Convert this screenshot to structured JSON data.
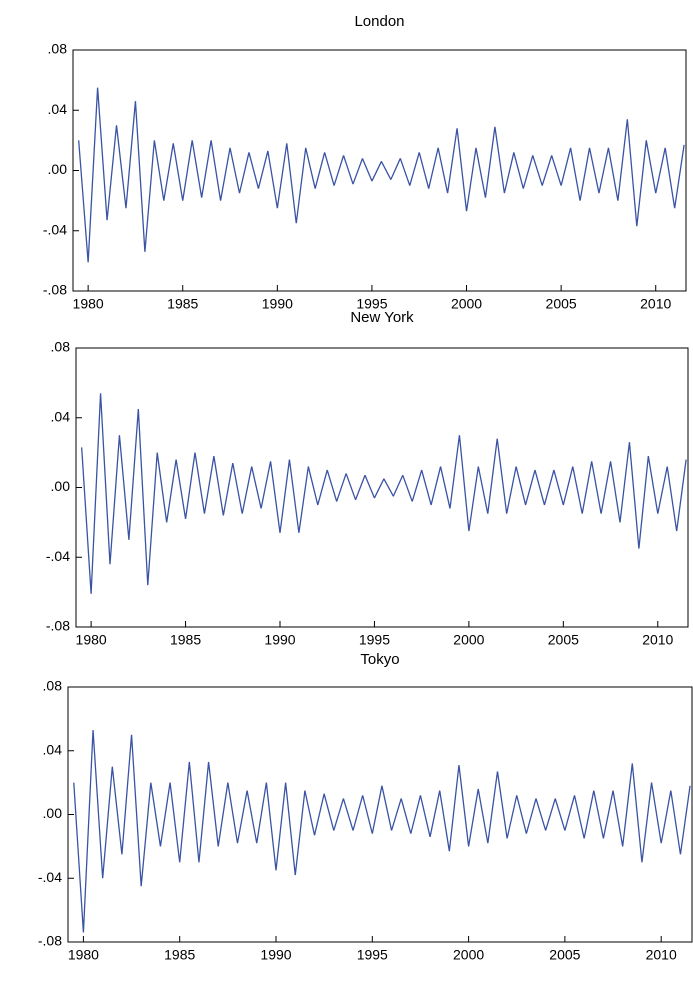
{
  "chart_data": [
    {
      "type": "line",
      "title": "London",
      "color": "#3a53a4",
      "x": [
        1979.5,
        1980,
        1980.5,
        1981,
        1981.5,
        1982,
        1982.5,
        1983,
        1983.5,
        1984,
        1984.5,
        1985,
        1985.5,
        1986,
        1986.5,
        1987,
        1987.5,
        1988,
        1988.5,
        1989,
        1989.5,
        1990,
        1990.5,
        1991,
        1991.5,
        1992,
        1992.5,
        1993,
        1993.5,
        1994,
        1994.5,
        1995,
        1995.5,
        1996,
        1996.5,
        1997,
        1997.5,
        1998,
        1998.5,
        1999,
        1999.5,
        2000,
        2000.5,
        2001,
        2001.5,
        2002,
        2002.5,
        2003,
        2003.5,
        2004,
        2004.5,
        2005,
        2005.5,
        2006,
        2006.5,
        2007,
        2007.5,
        2008,
        2008.5,
        2009,
        2009.5,
        2010,
        2010.5,
        2011,
        2011.5
      ],
      "values": [
        0.02,
        -0.061,
        0.055,
        -0.033,
        0.03,
        -0.025,
        0.046,
        -0.054,
        0.02,
        -0.02,
        0.018,
        -0.02,
        0.02,
        -0.018,
        0.02,
        -0.02,
        0.015,
        -0.015,
        0.012,
        -0.012,
        0.013,
        -0.025,
        0.018,
        -0.035,
        0.015,
        -0.012,
        0.012,
        -0.01,
        0.01,
        -0.009,
        0.008,
        -0.007,
        0.006,
        -0.006,
        0.008,
        -0.01,
        0.012,
        -0.012,
        0.015,
        -0.015,
        0.028,
        -0.027,
        0.015,
        -0.018,
        0.029,
        -0.015,
        0.012,
        -0.012,
        0.01,
        -0.01,
        0.01,
        -0.01,
        0.015,
        -0.02,
        0.015,
        -0.015,
        0.015,
        -0.02,
        0.034,
        -0.037,
        0.02,
        -0.015,
        0.015,
        -0.025,
        0.017
      ],
      "xlim": [
        1979.2,
        2011.6
      ],
      "ylim": [
        -0.08,
        0.08
      ],
      "xticks": [
        1980,
        1985,
        1990,
        1995,
        2000,
        2005,
        2010
      ],
      "yticks": [
        {
          "value": -0.08,
          "label": "-.08"
        },
        {
          "value": -0.04,
          "label": "-.04"
        },
        {
          "value": 0,
          "label": ".00"
        },
        {
          "value": 0.04,
          "label": ".04"
        },
        {
          "value": 0.08,
          "label": ".08"
        }
      ]
    },
    {
      "type": "line",
      "title": "New York",
      "color": "#3a53a4",
      "x": [
        1979.5,
        1980,
        1980.5,
        1981,
        1981.5,
        1982,
        1982.5,
        1983,
        1983.5,
        1984,
        1984.5,
        1985,
        1985.5,
        1986,
        1986.5,
        1987,
        1987.5,
        1988,
        1988.5,
        1989,
        1989.5,
        1990,
        1990.5,
        1991,
        1991.5,
        1992,
        1992.5,
        1993,
        1993.5,
        1994,
        1994.5,
        1995,
        1995.5,
        1996,
        1996.5,
        1997,
        1997.5,
        1998,
        1998.5,
        1999,
        1999.5,
        2000,
        2000.5,
        2001,
        2001.5,
        2002,
        2002.5,
        2003,
        2003.5,
        2004,
        2004.5,
        2005,
        2005.5,
        2006,
        2006.5,
        2007,
        2007.5,
        2008,
        2008.5,
        2009,
        2009.5,
        2010,
        2010.5,
        2011,
        2011.5
      ],
      "values": [
        0.023,
        -0.061,
        0.054,
        -0.044,
        0.03,
        -0.03,
        0.045,
        -0.056,
        0.02,
        -0.02,
        0.016,
        -0.018,
        0.02,
        -0.015,
        0.018,
        -0.016,
        0.014,
        -0.015,
        0.012,
        -0.012,
        0.015,
        -0.026,
        0.016,
        -0.026,
        0.012,
        -0.01,
        0.01,
        -0.008,
        0.008,
        -0.007,
        0.007,
        -0.006,
        0.005,
        -0.005,
        0.007,
        -0.008,
        0.01,
        -0.01,
        0.012,
        -0.012,
        0.03,
        -0.025,
        0.012,
        -0.015,
        0.028,
        -0.015,
        0.012,
        -0.01,
        0.01,
        -0.01,
        0.01,
        -0.01,
        0.012,
        -0.015,
        0.015,
        -0.015,
        0.015,
        -0.02,
        0.026,
        -0.035,
        0.018,
        -0.015,
        0.012,
        -0.025,
        0.016
      ],
      "xlim": [
        1979.2,
        2011.6
      ],
      "ylim": [
        -0.08,
        0.08
      ],
      "xticks": [
        1980,
        1985,
        1990,
        1995,
        2000,
        2005,
        2010
      ],
      "yticks": [
        {
          "value": -0.08,
          "label": "-.08"
        },
        {
          "value": -0.04,
          "label": "-.04"
        },
        {
          "value": 0,
          "label": ".00"
        },
        {
          "value": 0.04,
          "label": ".04"
        },
        {
          "value": 0.08,
          "label": ".08"
        }
      ]
    },
    {
      "type": "line",
      "title": "Tokyo",
      "color": "#3a53a4",
      "x": [
        1979.5,
        1980,
        1980.5,
        1981,
        1981.5,
        1982,
        1982.5,
        1983,
        1983.5,
        1984,
        1984.5,
        1985,
        1985.5,
        1986,
        1986.5,
        1987,
        1987.5,
        1988,
        1988.5,
        1989,
        1989.5,
        1990,
        1990.5,
        1991,
        1991.5,
        1992,
        1992.5,
        1993,
        1993.5,
        1994,
        1994.5,
        1995,
        1995.5,
        1996,
        1996.5,
        1997,
        1997.5,
        1998,
        1998.5,
        1999,
        1999.5,
        2000,
        2000.5,
        2001,
        2001.5,
        2002,
        2002.5,
        2003,
        2003.5,
        2004,
        2004.5,
        2005,
        2005.5,
        2006,
        2006.5,
        2007,
        2007.5,
        2008,
        2008.5,
        2009,
        2009.5,
        2010,
        2010.5,
        2011,
        2011.5
      ],
      "values": [
        0.02,
        -0.074,
        0.053,
        -0.04,
        0.03,
        -0.025,
        0.05,
        -0.045,
        0.02,
        -0.02,
        0.02,
        -0.03,
        0.033,
        -0.03,
        0.033,
        -0.02,
        0.02,
        -0.018,
        0.015,
        -0.018,
        0.02,
        -0.035,
        0.02,
        -0.038,
        0.015,
        -0.013,
        0.013,
        -0.01,
        0.01,
        -0.01,
        0.012,
        -0.012,
        0.018,
        -0.01,
        0.01,
        -0.012,
        0.012,
        -0.014,
        0.015,
        -0.023,
        0.031,
        -0.02,
        0.016,
        -0.018,
        0.027,
        -0.015,
        0.012,
        -0.012,
        0.01,
        -0.01,
        0.01,
        -0.01,
        0.012,
        -0.015,
        0.015,
        -0.015,
        0.015,
        -0.02,
        0.032,
        -0.03,
        0.02,
        -0.018,
        0.015,
        -0.025,
        0.018
      ],
      "xlim": [
        1979.2,
        2011.6
      ],
      "ylim": [
        -0.08,
        0.08
      ],
      "xticks": [
        1980,
        1985,
        1990,
        1995,
        2000,
        2005,
        2010
      ],
      "yticks": [
        {
          "value": -0.08,
          "label": "-.08"
        },
        {
          "value": -0.04,
          "label": "-.04"
        },
        {
          "value": 0,
          "label": ".00"
        },
        {
          "value": 0.04,
          "label": ".04"
        },
        {
          "value": 0.08,
          "label": ".08"
        }
      ]
    }
  ]
}
